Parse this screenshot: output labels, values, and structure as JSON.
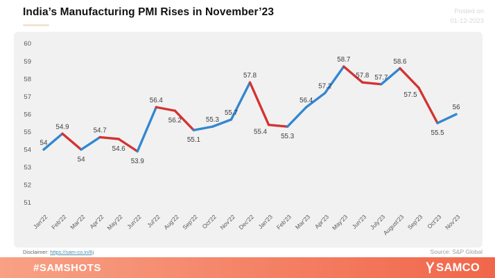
{
  "header": {
    "title": "India’s Manufacturing PMI Rises in November’23",
    "posted_on": [
      "Posted on",
      "01-12-2023"
    ]
  },
  "chart_data": {
    "type": "line",
    "title": "India’s Manufacturing PMI Rises in November’23",
    "x": [
      "Jan'22",
      "Feb'22",
      "Mar'22",
      "Apr'22",
      "May'22",
      "Jun'22",
      "Jul'22",
      "Aug'22",
      "Sep'22",
      "Oct'22",
      "Nov'22",
      "Dec'22",
      "Jan'23",
      "Feb'23",
      "Mar'23",
      "Apr'23",
      "May'23",
      "Jun'23",
      "July'23",
      "August'23",
      "Sep'23",
      "Oct'23",
      "Nov'23"
    ],
    "series": [
      {
        "name": "Manufacturing PMI",
        "values": [
          54,
          54.9,
          54,
          54.7,
          54.6,
          53.9,
          56.4,
          56.2,
          55.1,
          55.3,
          55.7,
          57.8,
          55.4,
          55.3,
          56.4,
          57.2,
          58.7,
          57.8,
          57.7,
          58.6,
          57.5,
          55.5,
          56
        ]
      }
    ],
    "label_positions": [
      "above",
      "above",
      "below",
      "above",
      "below",
      "below",
      "above",
      "below",
      "below",
      "above",
      "above",
      "above",
      "below-left",
      "below",
      "above",
      "above",
      "above",
      "above",
      "above",
      "above",
      "below-left",
      "below",
      "above"
    ],
    "ylim": [
      51,
      60
    ],
    "yticks": [
      51,
      52,
      53,
      54,
      55,
      56,
      57,
      58,
      59,
      60
    ],
    "grid": false,
    "legend": "none",
    "xlabel": "",
    "ylabel": "",
    "rising_color": "#3287d1",
    "falling_color": "#d23432",
    "label_color": "#3d3d3d",
    "axis_color": "#595959",
    "panel_bg": "#f1f1f1"
  },
  "footnote": {
    "disclaimer_label": "Disclaimer:",
    "disclaimer_link": "https://sam-co.in/6j",
    "source": "Source:  S&P Global"
  },
  "footer": {
    "hashtag": "#SAMSHOTS",
    "brand": "SAMCO",
    "bar_gradient": [
      "#f8a185",
      "#f1664a"
    ],
    "link_color": "#4a90ad"
  },
  "accent": {
    "title_underline": "#f2e3d5"
  }
}
